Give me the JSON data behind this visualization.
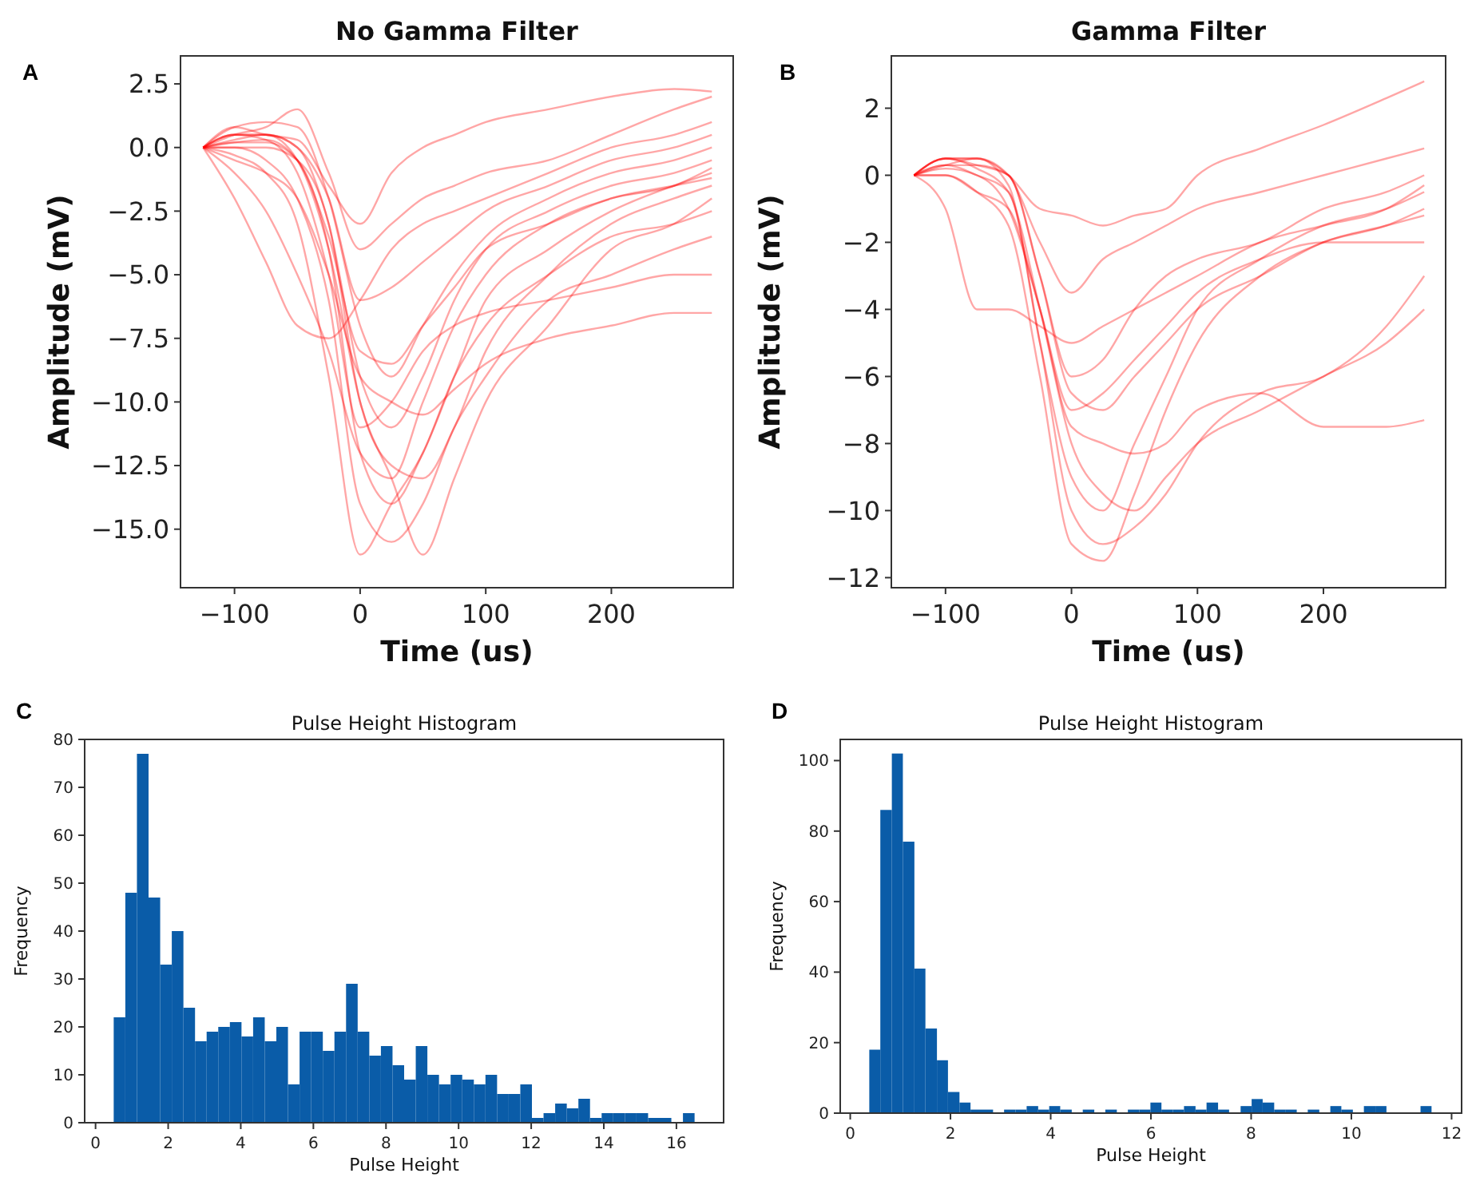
{
  "chart_data": [
    {
      "type": "line",
      "title": "No Gamma Filter",
      "xlabel": "Time (us)",
      "ylabel": "Amplitude (mV)",
      "annotations": [
        "A"
      ],
      "x": [
        -125,
        -100,
        -75,
        -50,
        -25,
        0,
        25,
        50,
        75,
        100,
        150,
        200,
        250,
        280
      ],
      "xlim": [
        -143,
        297
      ],
      "xticks": [
        {
          "value": -100,
          "label": "−100"
        },
        0,
        100,
        200
      ],
      "ylim": [
        -17.3,
        3.6
      ],
      "yticks": [
        {
          "value": 2.5,
          "label": "2.5"
        },
        {
          "value": 0,
          "label": "0.0"
        },
        {
          "value": -2.5,
          "label": "−2.5"
        },
        {
          "value": -5,
          "label": "−5.0"
        },
        {
          "value": -7.5,
          "label": "−7.5"
        },
        {
          "value": -10,
          "label": "−10.0"
        },
        {
          "value": -12.5,
          "label": "−12.5"
        },
        {
          "value": -15,
          "label": "−15.0"
        }
      ],
      "series": [
        {
          "color": "#ff0000",
          "values": [
            0,
            0.8,
            1.0,
            0.8,
            -2,
            -7,
            -9,
            -7,
            -5,
            -3.5,
            -2,
            -1,
            -0.5,
            0
          ]
        },
        {
          "color": "#ff0000",
          "values": [
            0,
            0.5,
            0.5,
            0,
            -3,
            -9,
            -11,
            -9,
            -6,
            -4,
            -2.5,
            -1.5,
            -1,
            -0.5
          ]
        },
        {
          "color": "#ff0000",
          "values": [
            0,
            0.2,
            0.2,
            -0.5,
            -4,
            -12,
            -14,
            -12,
            -9,
            -7,
            -5,
            -3.5,
            -3,
            -2.5
          ]
        },
        {
          "color": "#ff0000",
          "values": [
            0,
            0,
            -0.5,
            -2,
            -6,
            -14,
            -15.5,
            -14,
            -11,
            -9,
            -6,
            -5,
            -4,
            -3.5
          ]
        },
        {
          "color": "#ff0000",
          "values": [
            0,
            -1,
            -2.5,
            -5,
            -8,
            -12,
            -13,
            -10,
            -7,
            -5,
            -3,
            -2,
            -1.5,
            -1.2
          ]
        },
        {
          "color": "#ff0000",
          "values": [
            0,
            -2,
            -4.5,
            -7,
            -7.5,
            -6,
            -4,
            -3,
            -2.5,
            -2,
            -1,
            0,
            0.5,
            1
          ]
        },
        {
          "color": "#ff0000",
          "values": [
            0,
            0.5,
            0.8,
            1.5,
            -1,
            -4,
            -3,
            -2,
            -1.5,
            -1,
            -0.5,
            0.5,
            1.5,
            2
          ]
        },
        {
          "color": "#ff0000",
          "values": [
            0,
            0.3,
            0.5,
            0,
            -2,
            -6,
            -5.5,
            -4.5,
            -3.5,
            -2.5,
            -1.5,
            -0.5,
            0,
            0.5
          ]
        },
        {
          "color": "#ff0000",
          "values": [
            0,
            0,
            0,
            -0.5,
            -3,
            -10,
            -12.5,
            -13,
            -11,
            -8,
            -5,
            -3,
            -2,
            -1.5
          ]
        },
        {
          "color": "#ff0000",
          "values": [
            0,
            0.5,
            0.3,
            -1,
            -5,
            -11,
            -10,
            -8,
            -7,
            -6.5,
            -6,
            -5.5,
            -5,
            -5
          ]
        },
        {
          "color": "#ff0000",
          "values": [
            0,
            -0.5,
            -1,
            -2,
            -5,
            -9,
            -10,
            -10.5,
            -9.5,
            -8.5,
            -7.5,
            -7,
            -6.5,
            -6.5
          ]
        },
        {
          "color": "#ff0000",
          "values": [
            0,
            0.8,
            0.5,
            0.3,
            -1.5,
            -3,
            -1,
            0,
            0.5,
            1,
            1.5,
            2,
            2.3,
            2.2
          ]
        },
        {
          "color": "#ff0000",
          "values": [
            0,
            -0.3,
            -1,
            -3,
            -9,
            -16,
            -14,
            -12,
            -9,
            -6,
            -4,
            -2.5,
            -1.5,
            -1
          ]
        },
        {
          "color": "#ff0000",
          "values": [
            0,
            0.2,
            0.3,
            -0.5,
            -3.5,
            -8,
            -8.5,
            -7,
            -5.5,
            -4,
            -3,
            -2,
            -1.5,
            -0.8
          ]
        },
        {
          "color": "#ff0000",
          "values": [
            0,
            0.5,
            0.5,
            -0.5,
            -4,
            -10,
            -13,
            -16,
            -13,
            -10,
            -7,
            -4,
            -3,
            -2
          ]
        }
      ]
    },
    {
      "type": "line",
      "title": "Gamma Filter",
      "xlabel": "Time (us)",
      "ylabel": "Amplitude (mV)",
      "annotations": [
        "B"
      ],
      "x": [
        -125,
        -100,
        -75,
        -50,
        -25,
        0,
        25,
        50,
        75,
        100,
        150,
        200,
        250,
        280
      ],
      "xlim": [
        -143,
        297
      ],
      "xticks": [
        {
          "value": -100,
          "label": "−100"
        },
        0,
        100,
        200
      ],
      "ylim": [
        -12.3,
        3.56
      ],
      "yticks": [
        2,
        0,
        {
          "value": -2,
          "label": "−2"
        },
        {
          "value": -4,
          "label": "−4"
        },
        {
          "value": -6,
          "label": "−6"
        },
        {
          "value": -8,
          "label": "−8"
        },
        {
          "value": -10,
          "label": "−10"
        },
        {
          "value": -12,
          "label": "−12"
        }
      ],
      "series": [
        {
          "color": "#ff0000",
          "values": [
            0,
            0.5,
            0.5,
            0,
            -1,
            -1.2,
            -1.5,
            -1.2,
            -1,
            0,
            0.8,
            1.5,
            2.3,
            2.8
          ]
        },
        {
          "color": "#ff0000",
          "values": [
            0,
            0.3,
            0.3,
            0,
            -3,
            -6,
            -5.5,
            -4,
            -3,
            -2.5,
            -2,
            -1,
            -0.5,
            0
          ]
        },
        {
          "color": "#ff0000",
          "values": [
            0,
            0.5,
            0.5,
            -0.3,
            -5,
            -9,
            -10,
            -8,
            -6,
            -4,
            -2.5,
            -1.5,
            -1,
            -0.5
          ]
        },
        {
          "color": "#ff0000",
          "values": [
            0,
            0,
            -0.5,
            -1.5,
            -6,
            -11,
            -11.5,
            -9.5,
            -7,
            -5,
            -3,
            -2,
            -1.5,
            -1
          ]
        },
        {
          "color": "#ff0000",
          "values": [
            0,
            -1,
            -4,
            -4,
            -4.5,
            -5,
            -4.5,
            -4,
            -3.5,
            -3,
            -2,
            -1.5,
            -1,
            -0.3
          ]
        },
        {
          "color": "#ff0000",
          "values": [
            0,
            0.2,
            0,
            -1,
            -4,
            -7.5,
            -8,
            -8.3,
            -8,
            -7,
            -6.5,
            -7.5,
            -7.5,
            -7.3
          ]
        },
        {
          "color": "#ff0000",
          "values": [
            0,
            0.5,
            0.2,
            -0.5,
            -4,
            -8,
            -9.5,
            -10,
            -9,
            -8,
            -7,
            -6,
            -5,
            -4
          ]
        },
        {
          "color": "#ff0000",
          "values": [
            0,
            0.3,
            0.5,
            0,
            -2,
            -3.5,
            -2.5,
            -2,
            -1.5,
            -1,
            -0.5,
            0,
            0.5,
            0.8
          ]
        },
        {
          "color": "#ff0000",
          "values": [
            0,
            0,
            -0.5,
            -1,
            -4,
            -7,
            -6.5,
            -5.5,
            -4.5,
            -3.5,
            -2.5,
            -2,
            -2,
            -2
          ]
        },
        {
          "color": "#ff0000",
          "values": [
            0,
            0.5,
            0.3,
            0,
            -3,
            -6.5,
            -7,
            -6,
            -5,
            -4,
            -3,
            -2,
            -1.5,
            -1.2
          ]
        },
        {
          "color": "#ff0000",
          "values": [
            0,
            0.3,
            0,
            -0.5,
            -5,
            -10,
            -11,
            -10.5,
            -9.5,
            -8,
            -6.5,
            -6,
            -4.5,
            -3
          ]
        }
      ]
    },
    {
      "type": "histogram",
      "title": "Pulse Height Histogram",
      "xlabel": "Pulse Height",
      "ylabel": "Frequency",
      "annotations": [
        "C"
      ],
      "color": "#0a5ca8",
      "bins": [
        0.5,
        0.82,
        1.14,
        1.46,
        1.78,
        2.1,
        2.42,
        2.74,
        3.06,
        3.38,
        3.7,
        4.02,
        4.34,
        4.66,
        4.98,
        5.3,
        5.62,
        5.94,
        6.26,
        6.58,
        6.9,
        7.22,
        7.54,
        7.86,
        8.18,
        8.5,
        8.82,
        9.14,
        9.46,
        9.78,
        10.1,
        10.42,
        10.74,
        11.06,
        11.38,
        11.7,
        12.02,
        12.34,
        12.66,
        12.98,
        13.3,
        13.62,
        13.94,
        14.26,
        14.58,
        14.9,
        15.22,
        15.54,
        15.86,
        16.18,
        16.5
      ],
      "values": [
        22,
        48,
        77,
        47,
        33,
        40,
        24,
        17,
        19,
        20,
        21,
        18,
        22,
        17,
        20,
        8,
        19,
        19,
        15,
        19,
        29,
        19,
        14,
        16,
        12,
        9,
        16,
        10,
        8,
        10,
        9,
        8,
        10,
        6,
        6,
        8,
        1,
        2,
        4,
        3,
        5,
        1,
        2,
        2,
        2,
        2,
        1,
        1,
        0,
        2
      ],
      "xlim": [
        -0.3,
        17.3
      ],
      "xticks": [
        0,
        2,
        4,
        6,
        8,
        10,
        12,
        14,
        16
      ],
      "ylim": [
        0,
        80
      ],
      "yticks": [
        0,
        10,
        20,
        30,
        40,
        50,
        60,
        70,
        80
      ]
    },
    {
      "type": "histogram",
      "title": "Pulse Height Histogram",
      "xlabel": "Pulse Height",
      "ylabel": "Frequency",
      "annotations": [
        "D"
      ],
      "color": "#0a5ca8",
      "bins": [
        0.38,
        0.6,
        0.83,
        1.05,
        1.28,
        1.5,
        1.73,
        1.95,
        2.18,
        2.4,
        2.85,
        3.07,
        3.3,
        3.52,
        3.75,
        3.97,
        4.19,
        4.42,
        4.64,
        4.87,
        5.09,
        5.32,
        5.54,
        5.77,
        5.99,
        6.21,
        6.44,
        6.66,
        6.89,
        7.11,
        7.34,
        7.56,
        7.79,
        8.01,
        8.23,
        8.46,
        8.68,
        8.91,
        9.13,
        9.36,
        9.58,
        9.8,
        10.03,
        10.25,
        10.48,
        10.7,
        11.38,
        11.6
      ],
      "values": [
        18,
        86,
        102,
        77,
        41,
        24,
        15,
        6,
        3,
        1,
        0,
        1,
        1,
        2,
        1,
        2,
        1,
        0,
        1,
        0,
        1,
        0,
        1,
        1,
        3,
        1,
        1,
        2,
        1,
        3,
        1,
        0,
        2,
        4,
        3,
        1,
        1,
        0,
        1,
        0,
        2,
        1,
        0,
        2,
        2,
        0,
        2
      ],
      "xlim": [
        -0.2,
        12.2
      ],
      "xticks": [
        0,
        2,
        4,
        6,
        8,
        10,
        12
      ],
      "ylim": [
        0,
        106
      ],
      "yticks": [
        0,
        20,
        40,
        60,
        80,
        100
      ]
    }
  ]
}
